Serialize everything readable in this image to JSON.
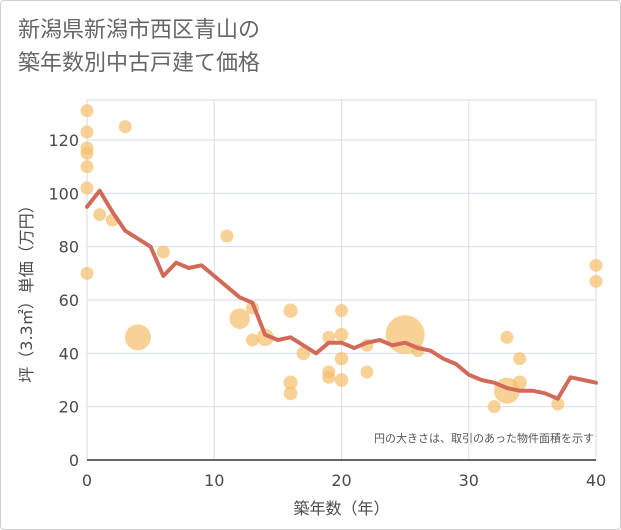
{
  "page": {
    "title_line1": "新潟県新潟市西区青山の",
    "title_line2": "築年数別中古戸建て価格"
  },
  "chart_data": {
    "type": "scatter",
    "title": "新潟県新潟市西区青山の 築年数別中古戸建て価格",
    "xlabel": "築年数（年）",
    "ylabel": "坪（3.3㎡）単価（万円）",
    "xlim": [
      0,
      40
    ],
    "ylim": [
      0,
      135
    ],
    "x_ticks": [
      0,
      10,
      20,
      30,
      40
    ],
    "y_ticks": [
      0,
      20,
      40,
      60,
      80,
      100,
      120
    ],
    "grid": true,
    "note": "円の大きさは、取引のあった物件面積を示す",
    "colors": {
      "bubble": "#f5bf6e",
      "line": "#d26a5a",
      "grid": "#d6dde4"
    },
    "bubbles": [
      {
        "x": 0,
        "y": 131,
        "size": 1
      },
      {
        "x": 0,
        "y": 123,
        "size": 1
      },
      {
        "x": 0,
        "y": 117,
        "size": 1
      },
      {
        "x": 0,
        "y": 115,
        "size": 1
      },
      {
        "x": 0,
        "y": 110,
        "size": 1
      },
      {
        "x": 0,
        "y": 102,
        "size": 1
      },
      {
        "x": 0,
        "y": 70,
        "size": 1
      },
      {
        "x": 1,
        "y": 92,
        "size": 1
      },
      {
        "x": 2,
        "y": 90,
        "size": 1
      },
      {
        "x": 3,
        "y": 125,
        "size": 1
      },
      {
        "x": 4,
        "y": 46,
        "size": 4
      },
      {
        "x": 6,
        "y": 78,
        "size": 1
      },
      {
        "x": 11,
        "y": 84,
        "size": 1
      },
      {
        "x": 12,
        "y": 53,
        "size": 2.5
      },
      {
        "x": 13,
        "y": 57,
        "size": 1
      },
      {
        "x": 13,
        "y": 45,
        "size": 1
      },
      {
        "x": 14,
        "y": 46,
        "size": 1.8
      },
      {
        "x": 16,
        "y": 56,
        "size": 1.2
      },
      {
        "x": 16,
        "y": 29,
        "size": 1.2
      },
      {
        "x": 16,
        "y": 25,
        "size": 1.1
      },
      {
        "x": 17,
        "y": 40,
        "size": 1.1
      },
      {
        "x": 19,
        "y": 46,
        "size": 1
      },
      {
        "x": 19,
        "y": 33,
        "size": 1
      },
      {
        "x": 19,
        "y": 31,
        "size": 1
      },
      {
        "x": 20,
        "y": 56,
        "size": 1
      },
      {
        "x": 20,
        "y": 47,
        "size": 1.1
      },
      {
        "x": 20,
        "y": 38,
        "size": 1.1
      },
      {
        "x": 20,
        "y": 30,
        "size": 1.1
      },
      {
        "x": 22,
        "y": 43,
        "size": 1
      },
      {
        "x": 22,
        "y": 33,
        "size": 1
      },
      {
        "x": 25,
        "y": 47,
        "size": 9
      },
      {
        "x": 26,
        "y": 41,
        "size": 1
      },
      {
        "x": 32,
        "y": 20,
        "size": 1
      },
      {
        "x": 33,
        "y": 46,
        "size": 1
      },
      {
        "x": 33,
        "y": 26,
        "size": 4
      },
      {
        "x": 34,
        "y": 38,
        "size": 1
      },
      {
        "x": 34,
        "y": 29,
        "size": 1.2
      },
      {
        "x": 37,
        "y": 21,
        "size": 1
      },
      {
        "x": 40,
        "y": 73,
        "size": 1
      },
      {
        "x": 40,
        "y": 67,
        "size": 1
      }
    ],
    "trend_line": {
      "x": [
        0,
        1,
        2,
        3,
        4,
        5,
        6,
        7,
        8,
        9,
        10,
        11,
        12,
        13,
        14,
        15,
        16,
        17,
        18,
        19,
        20,
        21,
        22,
        23,
        24,
        25,
        26,
        27,
        28,
        29,
        30,
        31,
        32,
        33,
        34,
        35,
        36,
        37,
        38,
        39,
        40
      ],
      "y": [
        95,
        101,
        93,
        86,
        83,
        80,
        69,
        74,
        72,
        73,
        69,
        65,
        61,
        59,
        47,
        45,
        46,
        43,
        40,
        44,
        44,
        42,
        44,
        45,
        43,
        44,
        42,
        41,
        38,
        36,
        32,
        30,
        29,
        27,
        26,
        26,
        25,
        23,
        31,
        30,
        29
      ]
    }
  }
}
